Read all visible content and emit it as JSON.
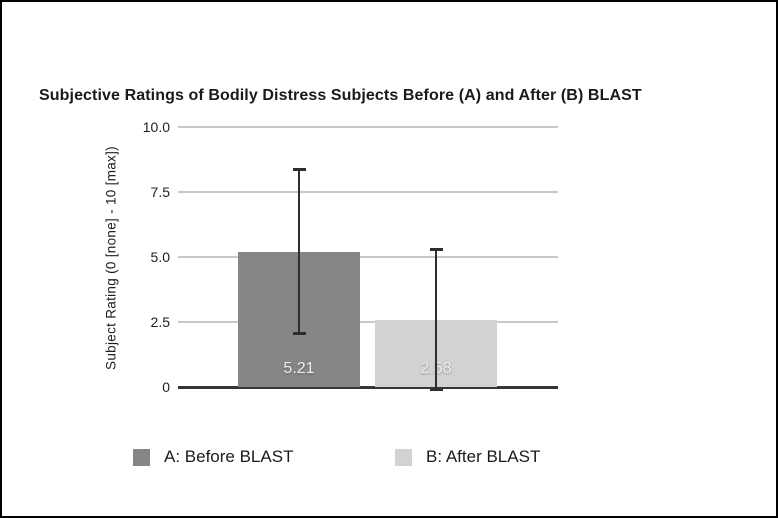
{
  "figure": {
    "background_color": "#ffffff",
    "border_color": "#000000"
  },
  "chart_data": {
    "type": "bar",
    "title": "Subjective Ratings of Bodily Distress Subjects Before (A) and After (B) BLAST",
    "xlabel": "",
    "ylabel": "Subject Rating (0 [none] - 10 [max])",
    "ylim": [
      0,
      10
    ],
    "yticks": [
      "10.0",
      "7.5",
      "5.0",
      "2.5",
      "0"
    ],
    "ytick_values": [
      10,
      7.5,
      5,
      2.5,
      0
    ],
    "grid": true,
    "legend_position": "bottom",
    "categories": [
      "A: Before BLAST",
      "B: After BLAST"
    ],
    "series": [
      {
        "name": "A: Before BLAST",
        "value": 5.21,
        "value_label": "5.21",
        "error": 3.15,
        "color": "#868686"
      },
      {
        "name": "B: After BLAST",
        "value": 2.58,
        "value_label": "2.58",
        "error": 2.7,
        "color": "#d2d2d0"
      }
    ],
    "colors": {
      "gridline": "#c9c9c9",
      "axis_line": "#363636",
      "error_bar": "#2e2e2e",
      "value_label_text": "#ededed"
    }
  }
}
